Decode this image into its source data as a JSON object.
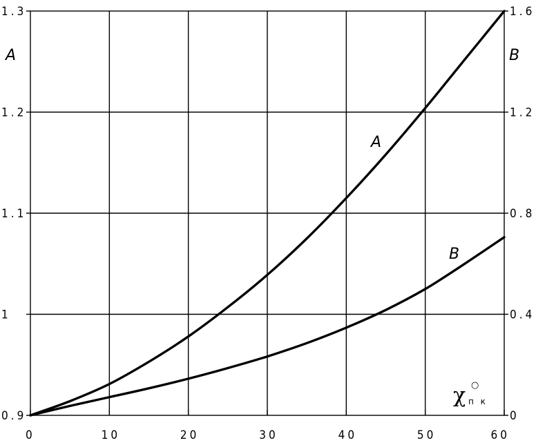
{
  "chart_data": {
    "type": "line",
    "xlim": [
      0,
      60
    ],
    "x_ticks": [
      "0",
      "10",
      "20",
      "30",
      "40",
      "50",
      "60"
    ],
    "left_axis": {
      "label": "A",
      "ylim": [
        0.9,
        1.3
      ],
      "ticks": [
        "0.9",
        "1",
        "1.1",
        "1.2",
        "1.3"
      ]
    },
    "right_axis": {
      "label": "B",
      "ylim": [
        0,
        1.6
      ],
      "ticks": [
        "0",
        "0.4",
        "0.8",
        "1.2",
        "1.6"
      ]
    },
    "x_axis_label": {
      "symbol": "χ",
      "superscript": "○",
      "subscript": "п к"
    },
    "grid": true,
    "series": [
      {
        "name": "A",
        "axis": "left",
        "x": [
          0,
          5,
          10,
          15,
          20,
          25,
          30,
          35,
          40,
          45,
          50,
          55,
          60
        ],
        "y": [
          0.9,
          0.914,
          0.931,
          0.953,
          0.978,
          1.007,
          1.039,
          1.075,
          1.115,
          1.158,
          1.204,
          1.252,
          1.3
        ]
      },
      {
        "name": "B",
        "axis": "right",
        "x": [
          0,
          5,
          10,
          15,
          20,
          25,
          30,
          35,
          40,
          45,
          50,
          55,
          60
        ],
        "y": [
          0,
          0.037,
          0.072,
          0.107,
          0.145,
          0.187,
          0.233,
          0.286,
          0.347,
          0.417,
          0.5,
          0.6,
          0.705
        ]
      }
    ]
  }
}
